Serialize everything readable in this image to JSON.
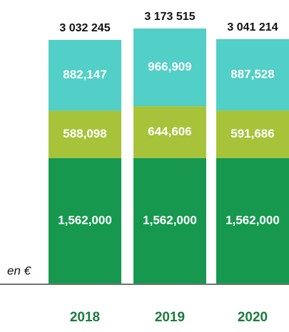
{
  "chart_data": {
    "type": "stacked_bar",
    "categories": [
      "2018",
      "2019",
      "2020"
    ],
    "series": [
      {
        "color": "#16994f",
        "values": [
          1562000,
          1562000,
          1562000
        ],
        "value_labels": [
          "1,562,000",
          "1,562,000",
          "1,562,000"
        ]
      },
      {
        "color": "#a6c33a",
        "values": [
          588098,
          644606,
          591686
        ],
        "value_labels": [
          "588,098",
          "644,606",
          "591,686"
        ]
      },
      {
        "color": "#52cfc6",
        "values": [
          882147,
          966909,
          887528
        ],
        "value_labels": [
          "882,147",
          "966,909",
          "887,528"
        ]
      }
    ],
    "total_labels": [
      "3 032 245",
      "3 173 515",
      "3 041 214"
    ],
    "unit_label": "en €"
  }
}
